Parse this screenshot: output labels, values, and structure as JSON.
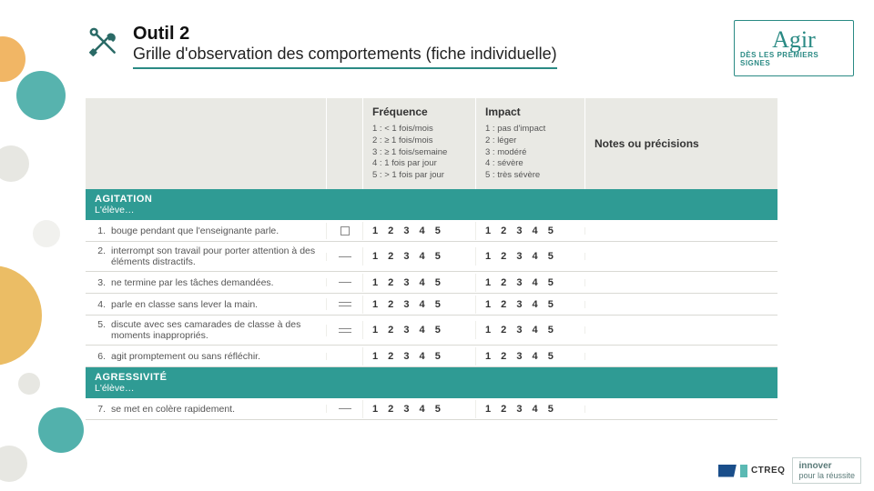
{
  "header": {
    "title": "Outil 2",
    "subtitle": "Grille d'observation des comportements (fiche individuelle)"
  },
  "logo": {
    "script": "Agir",
    "sub": "DÈS LES PREMIERS SIGNES"
  },
  "columns": {
    "freq_title": "Fréquence",
    "freq_legend": [
      "1 : < 1 fois/mois",
      "2 : ≥ 1 fois/mois",
      "3 : ≥ 1 fois/semaine",
      "4 : 1 fois par jour",
      "5 : > 1 fois par jour"
    ],
    "impact_title": "Impact",
    "impact_legend": [
      "1 : pas d'impact",
      "2 : léger",
      "3 : modéré",
      "4 : sévère",
      "5 : très sévère"
    ],
    "notes_title": "Notes ou précisions"
  },
  "scale_text": "1 2 3 4 5",
  "sections": [
    {
      "category": "AGITATION",
      "sub": "L'élève…"
    },
    {
      "category": "AGRESSIVITÉ",
      "sub": "L'élève…"
    }
  ],
  "rows_agitation": [
    {
      "n": "1.",
      "text": "bouge pendant que l'enseignante parle.",
      "mark": "box"
    },
    {
      "n": "2.",
      "text": "interrompt son travail pour porter attention à des éléments distractifs.",
      "mark": "dash"
    },
    {
      "n": "3.",
      "text": "ne termine par les tâches demandées.",
      "mark": "dash"
    },
    {
      "n": "4.",
      "text": "parle en classe sans lever la main.",
      "mark": "two"
    },
    {
      "n": "5.",
      "text": "discute avec ses camarades de classe à des moments inappropriés.",
      "mark": "two"
    },
    {
      "n": "6.",
      "text": "agit promptement ou sans réfléchir.",
      "mark": "none"
    }
  ],
  "rows_agress": [
    {
      "n": "7.",
      "text": "se met en colère rapidement.",
      "mark": "dash"
    }
  ],
  "footer": {
    "ctreq": "CTREQ",
    "innover_line1": "innover",
    "innover_line2": "pour la réussite"
  },
  "colors": {
    "teal": "#2f9b94",
    "teal_dark": "#2a6a66",
    "header_bg": "#e9e9e4"
  }
}
